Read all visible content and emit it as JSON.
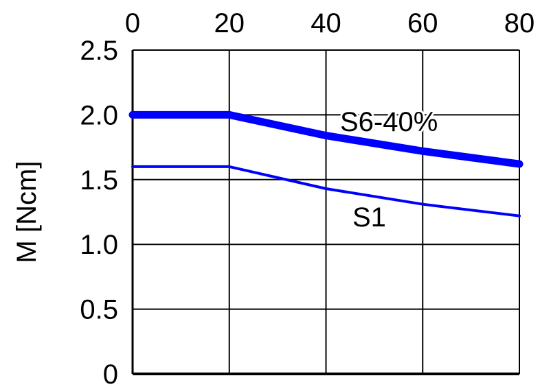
{
  "chart_data": {
    "type": "line",
    "title": "",
    "xlabel": "",
    "ylabel": "M [Ncm]",
    "xlim": [
      0,
      80
    ],
    "ylim": [
      0,
      2.5
    ],
    "x_ticks": [
      "0",
      "20",
      "40",
      "60",
      "80"
    ],
    "y_ticks": [
      "0",
      "0.5",
      "1.0",
      "1.5",
      "2.0",
      "2.5"
    ],
    "x_tick_values": [
      0,
      20,
      40,
      60,
      80
    ],
    "y_tick_values": [
      0,
      0.5,
      1.0,
      1.5,
      2.0,
      2.5
    ],
    "x_axis_position": "top",
    "grid": true,
    "legend": "none",
    "series": [
      {
        "name": "S6-40%",
        "color": "#0000ff",
        "x": [
          0,
          20,
          40,
          60,
          80
        ],
        "values": [
          2.0,
          2.0,
          1.84,
          1.72,
          1.62
        ]
      },
      {
        "name": "S1",
        "color": "#0000ff",
        "x": [
          0,
          20,
          40,
          60,
          80
        ],
        "values": [
          1.6,
          1.6,
          1.43,
          1.31,
          1.22
        ]
      }
    ]
  }
}
